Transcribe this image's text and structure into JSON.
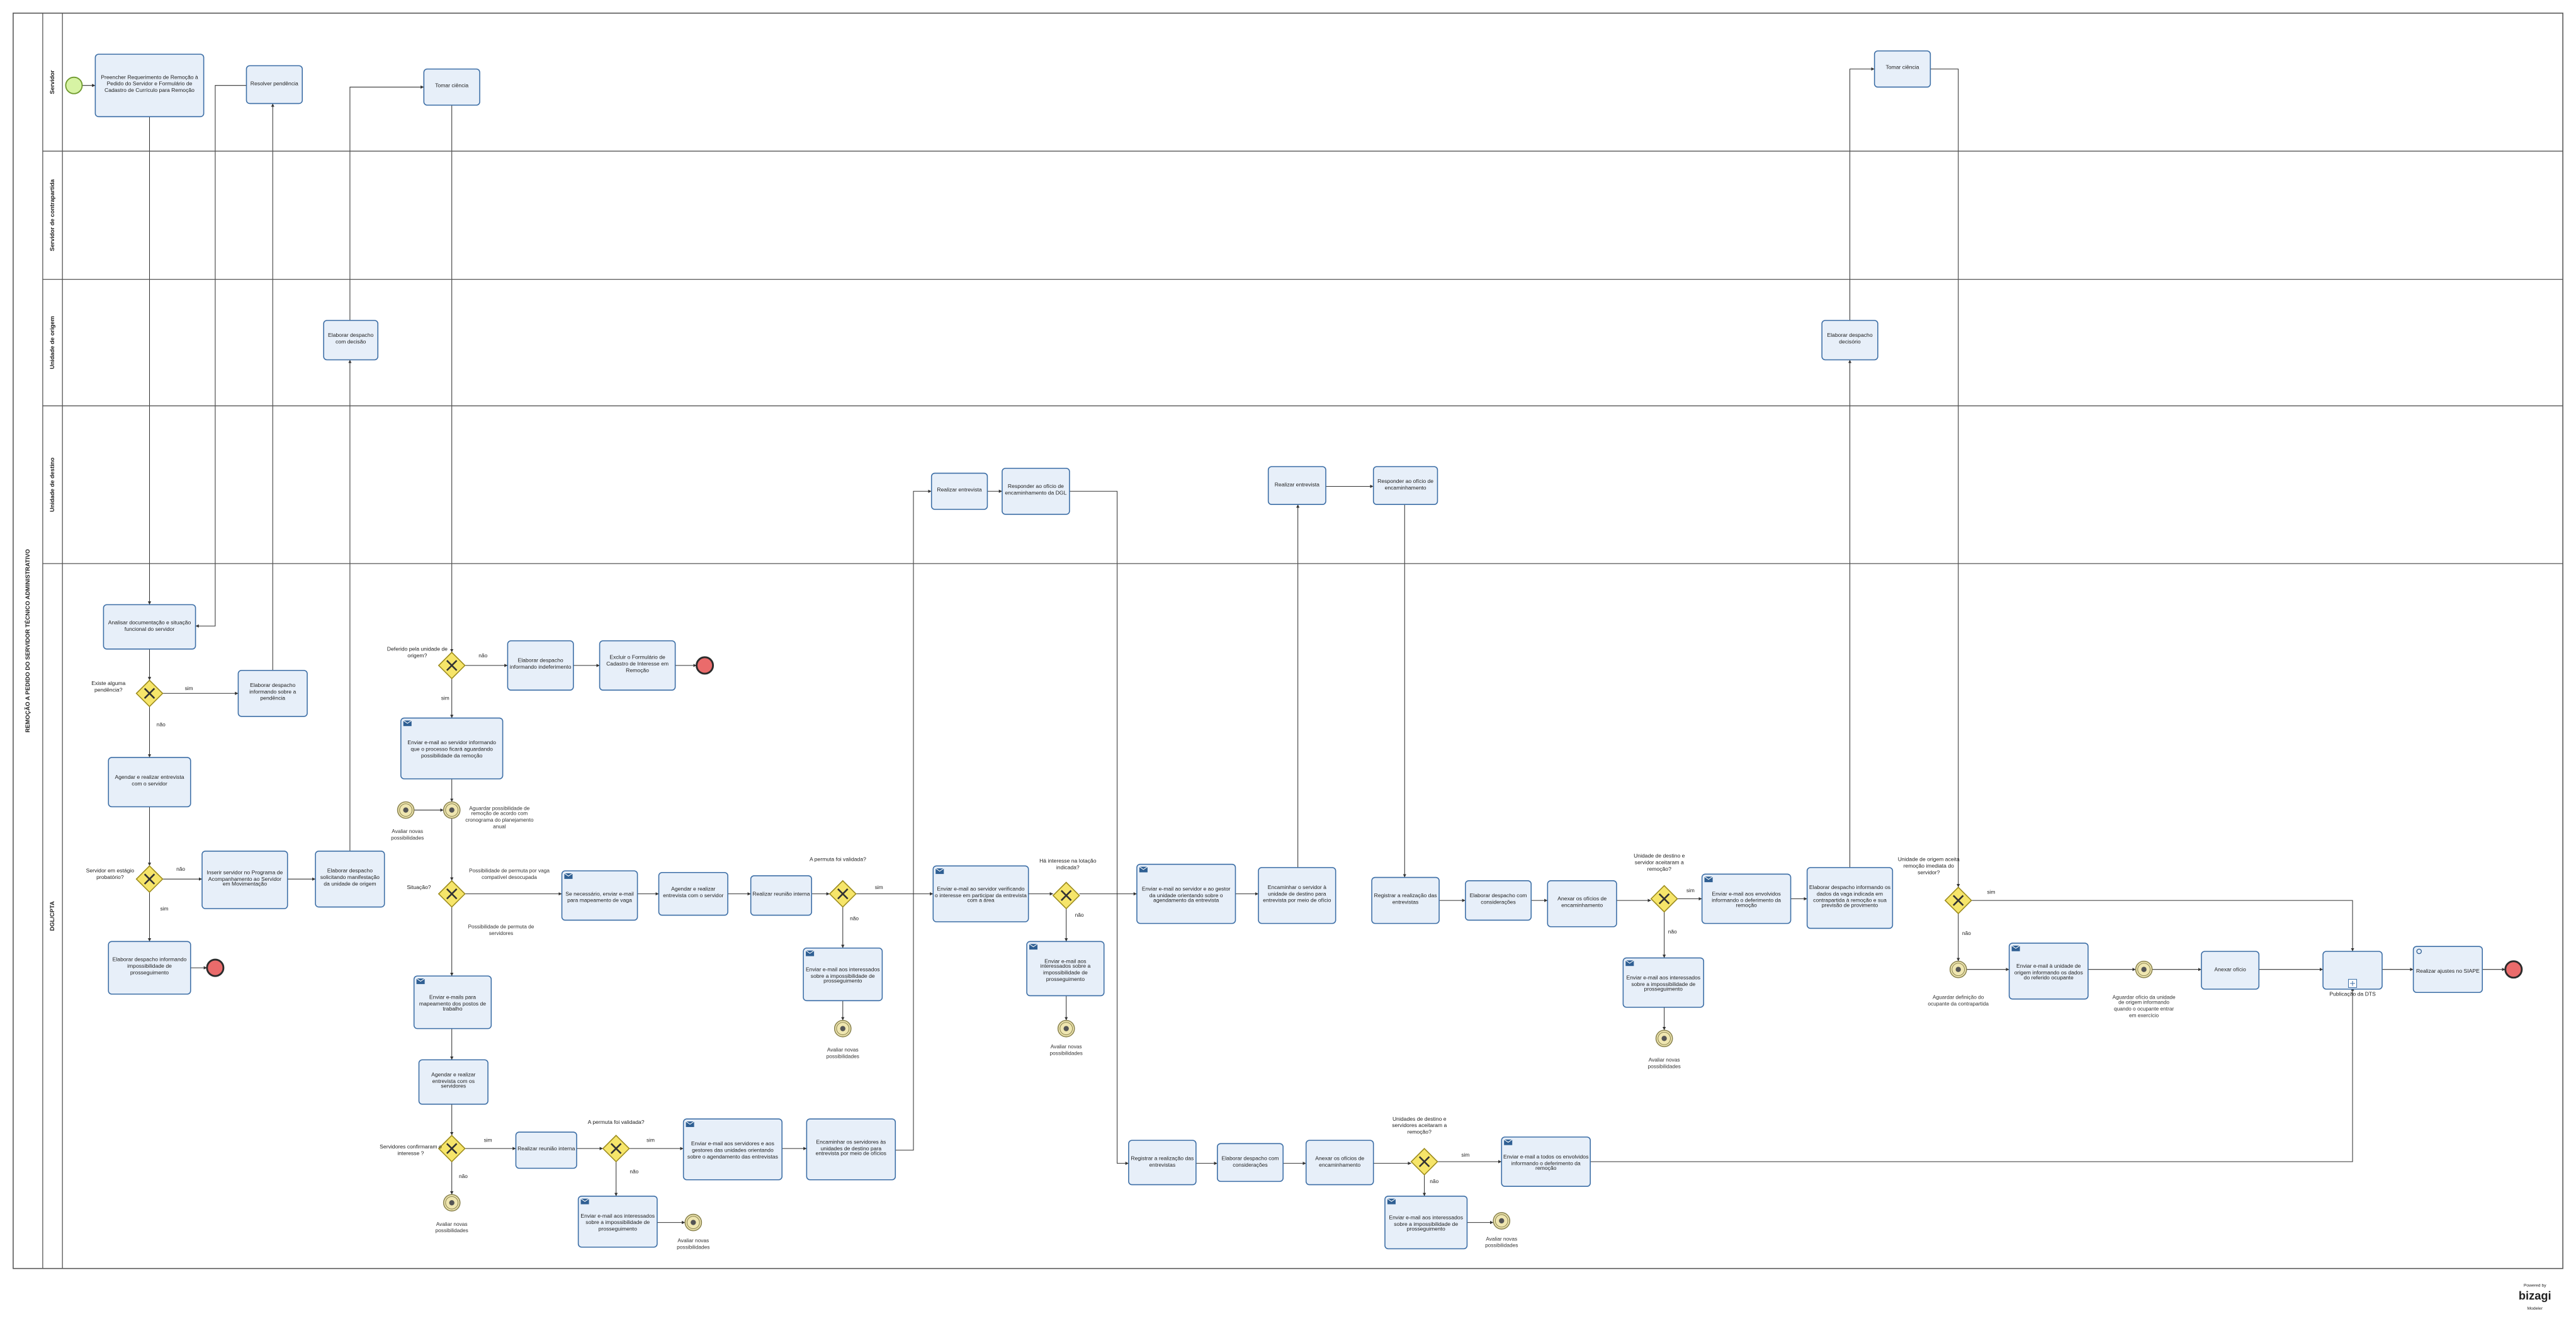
{
  "pool": {
    "title": "REMOÇÃO A PEDIDO DO SERVIDOR TÉCNICO ADMINISTRATIVO"
  },
  "lanes": [
    "Servidor",
    "Servidor de contrapartida",
    "Unidade de origem",
    "Unidade de destino",
    "DGL/CPTA"
  ],
  "tasks": [
    "Preencher Requerimento de Remoção à Pedido do Servidor e Formulário de Cadastro de Currículo para Remoção",
    "Resolver pendência",
    "Tomar ciência",
    "Tomar ciência",
    "Elaborar despacho com decisão",
    "Elaborar despacho decisório",
    "Realizar entrevista",
    "Responder ao ofício de encaminhamento da DGL",
    "Realizar entrevista",
    "Responder ao ofício de encaminhamento",
    "Analisar documentação e situação funcional do servidor",
    "Elaborar despacho informando sobre a pendência",
    "Agendar e realizar entrevista com o servidor",
    "Inserir servidor no Programa de Acompanhamento ao Servidor em Movimentação",
    "Elaborar despacho solicitando manifestação da unidade de origem",
    "Elaborar despacho informando impossibilidade de prosseguimento",
    "Elaborar despacho informando indeferimento",
    "Excluir o Formulário de Cadastro de Interesse em Remoção",
    "Enviar e-mail ao servidor informando que o processo ficará aguardando possibilidade da remoção",
    "Se necessário, enviar e-mail para mapeamento de vaga",
    "Agendar e realizar entrevista com o servidor",
    "Realizar reunião interna",
    "Enviar e-mail aos interessados sobre a impossibilidade de prosseguimento",
    "Enviar e-mail ao servidor verificando o interesse em participar da entrevista com a área",
    "Enviar e-mail aos interessados sobre a impossibilidade de prosseguimento",
    "Enviar e-mail ao servidor e ao gestor da unidade orientando sobre o agendamento da entrevista",
    "Encaminhar o servidor à unidade de destino para entrevista por meio de ofício",
    "Registrar a realização das entrevistas",
    "Elaborar despacho com considerações",
    "Anexar os ofícios de encaminhamento",
    "Enviar e-mail aos envolvidos informando o deferimento da remoção",
    "Enviar e-mail aos interessados sobre a impossibilidade de prosseguimento",
    "Elaborar despacho informando os dados da vaga indicada em contrapartida à remoção e sua previsão de provimento",
    "Enviar e-mail à unidade de origem informando os dados do referido ocupante",
    "Anexar ofício",
    "Realizar ajustes no SIAPE",
    "Enviar e-mails para mapeamento dos postos de trabalho",
    "Agendar e realizar entrevista com os servidores",
    "Realizar reunião interna",
    "Enviar e-mail aos interessados sobre a impossibilidade de prosseguimento",
    "Enviar e-mail aos servidores e aos gestores das unidades orientando sobre o agendamento das entrevistas",
    "Encaminhar os servidores às unidades de destino para entrevista por meio de ofícios",
    "Registrar a realização das entrevistas",
    "Elaborar despacho com considerações",
    "Anexar os ofícios de encaminhamento",
    "Enviar e-mail a todos os envolvidos informando o deferimento da remoção",
    "Enviar e-mail aos interessados sobre a impossibilidade de prosseguimento"
  ],
  "subprocess": {
    "label": "Publicação da DTS"
  },
  "gateways": [
    "Existe alguma pendência?",
    "Servidor em estágio probatório?",
    "Deferido pela unidade de origem?",
    "Situação?",
    "A permuta foi validada?",
    "Há interesse na lotação indicada?",
    "Unidade de destino e servidor aceitaram a remoção?",
    "Unidade de origem aceita remoção imediata do servidor?",
    "Servidores confirmaram o interesse ?",
    "A permuta foi validada?",
    "Unidades de destino e servidores aceitaram a remoção?"
  ],
  "events": [
    "Avaliar novas possibilidades",
    "Aguardar possibilidade de remoção de acordo com cronograma do planejamento anual",
    "Avaliar novas possibilidades",
    "Avaliar novas possibilidades",
    "Avaliar novas possibilidades",
    "Aguardar definição do ocupante da contrapartida",
    "Aguardar ofício da unidade de origem informando quando o ocupante entrar em exercício",
    "Avaliar novas possibilidades",
    "Avaliar novas possibilidades",
    "Avaliar novas possibilidades"
  ],
  "flow_labels": [
    "sim",
    "não",
    "não",
    "sim",
    "não",
    "sim",
    "Possibilidade de permuta por vaga compatível desocupada",
    "Possibilidade de permuta de servidores",
    "sim",
    "não",
    "não",
    "sim",
    "não",
    "sim",
    "não",
    "sim",
    "não",
    "sim",
    "não",
    "sim",
    "não"
  ],
  "branding": [
    "Powered by",
    "bizagi",
    "Modeler"
  ]
}
